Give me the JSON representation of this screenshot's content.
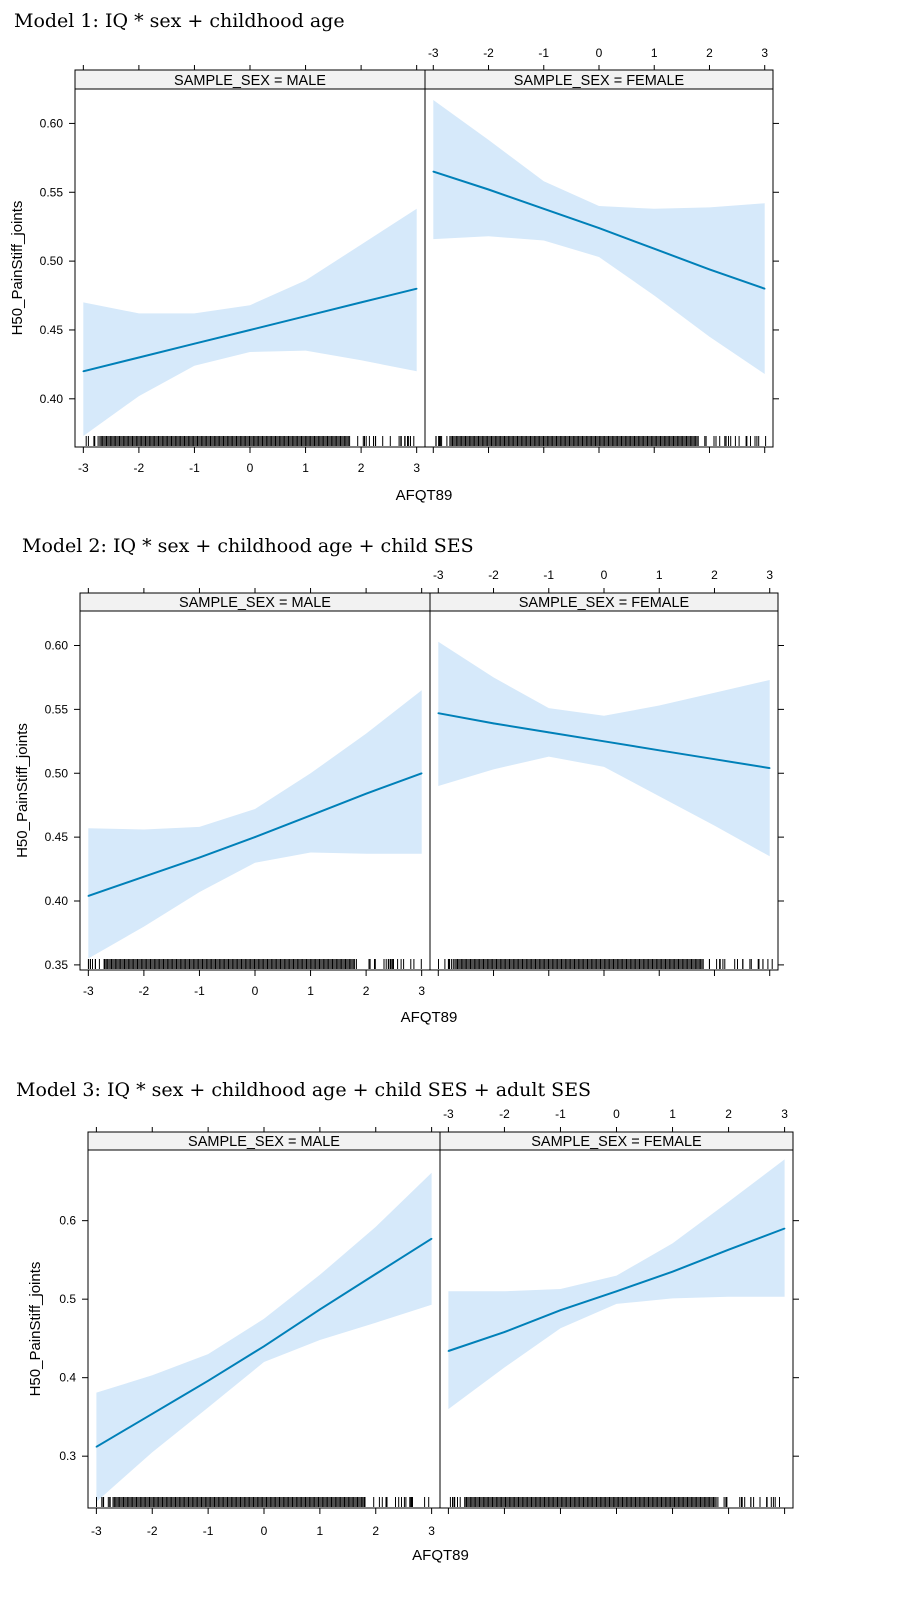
{
  "chart_data": [
    {
      "type": "line",
      "title": "Model 1: IQ * sex + childhood age",
      "xlabel": "AFQT89",
      "ylabel": "H50_PainStiff_joints",
      "xlim": [
        -3.15,
        3.15
      ],
      "ylim": [
        0.365,
        0.625
      ],
      "xticks": [
        -3,
        -2,
        -1,
        0,
        1,
        2,
        3
      ],
      "yticks": [
        0.4,
        0.45,
        0.5,
        0.55,
        0.6
      ],
      "ytick_labels": [
        "0.40",
        "0.45",
        "0.50",
        "0.55",
        "0.60"
      ],
      "grid": false,
      "panels": [
        {
          "strip": "SAMPLE_SEX = MALE",
          "x": [
            -3,
            -2,
            -1,
            0,
            1,
            2,
            3
          ],
          "y": [
            0.42,
            0.43,
            0.44,
            0.45,
            0.46,
            0.47,
            0.48
          ],
          "lower": [
            0.373,
            0.402,
            0.424,
            0.434,
            0.435,
            0.428,
            0.42
          ],
          "upper": [
            0.47,
            0.462,
            0.462,
            0.468,
            0.486,
            0.512,
            0.538
          ]
        },
        {
          "strip": "SAMPLE_SEX = FEMALE",
          "x": [
            -3,
            -2,
            -1,
            0,
            1,
            2,
            3
          ],
          "y": [
            0.565,
            0.552,
            0.538,
            0.524,
            0.509,
            0.494,
            0.48
          ],
          "lower": [
            0.516,
            0.518,
            0.515,
            0.503,
            0.475,
            0.445,
            0.418
          ],
          "upper": [
            0.617,
            0.588,
            0.558,
            0.54,
            0.538,
            0.539,
            0.542
          ]
        }
      ]
    },
    {
      "type": "line",
      "title": "Model 2: IQ * sex + childhood age + child SES",
      "xlabel": "AFQT89",
      "ylabel": "H50_PainStiff_joints",
      "xlim": [
        -3.15,
        3.15
      ],
      "ylim": [
        0.346,
        0.627
      ],
      "xticks": [
        -3,
        -2,
        -1,
        0,
        1,
        2,
        3
      ],
      "yticks": [
        0.35,
        0.4,
        0.45,
        0.5,
        0.55,
        0.6
      ],
      "ytick_labels": [
        "0.35",
        "0.40",
        "0.45",
        "0.50",
        "0.55",
        "0.60"
      ],
      "grid": false,
      "panels": [
        {
          "strip": "SAMPLE_SEX = MALE",
          "x": [
            -3,
            -2,
            -1,
            0,
            1,
            2,
            3
          ],
          "y": [
            0.404,
            0.419,
            0.434,
            0.45,
            0.467,
            0.484,
            0.5
          ],
          "lower": [
            0.355,
            0.38,
            0.407,
            0.43,
            0.438,
            0.437,
            0.437
          ],
          "upper": [
            0.457,
            0.456,
            0.458,
            0.472,
            0.5,
            0.531,
            0.565
          ]
        },
        {
          "strip": "SAMPLE_SEX = FEMALE",
          "x": [
            -3,
            -2,
            -1,
            0,
            1,
            2,
            3
          ],
          "y": [
            0.547,
            0.539,
            0.532,
            0.525,
            0.518,
            0.511,
            0.504
          ],
          "lower": [
            0.49,
            0.503,
            0.513,
            0.505,
            0.482,
            0.459,
            0.435
          ],
          "upper": [
            0.603,
            0.575,
            0.551,
            0.545,
            0.553,
            0.563,
            0.573
          ]
        }
      ]
    },
    {
      "type": "line",
      "title": "Model 3: IQ * sex + childhood age + child SES + adult SES",
      "xlabel": "AFQT89",
      "ylabel": "H50_PainStiff_joints",
      "xlim": [
        -3.15,
        3.15
      ],
      "ylim": [
        0.234,
        0.69
      ],
      "xticks": [
        -3,
        -2,
        -1,
        0,
        1,
        2,
        3
      ],
      "yticks": [
        0.3,
        0.4,
        0.5,
        0.6
      ],
      "ytick_labels": [
        "0.3",
        "0.4",
        "0.5",
        "0.6"
      ],
      "grid": false,
      "panels": [
        {
          "strip": "SAMPLE_SEX = MALE",
          "x": [
            -3,
            -2,
            -1,
            0,
            1,
            2,
            3
          ],
          "y": [
            0.312,
            0.354,
            0.396,
            0.44,
            0.487,
            0.532,
            0.577
          ],
          "lower": [
            0.242,
            0.305,
            0.362,
            0.42,
            0.448,
            0.47,
            0.493
          ],
          "upper": [
            0.381,
            0.403,
            0.43,
            0.475,
            0.531,
            0.592,
            0.661
          ]
        },
        {
          "strip": "SAMPLE_SEX = FEMALE",
          "x": [
            -3,
            -2,
            -1,
            0,
            1,
            2,
            3
          ],
          "y": [
            0.434,
            0.458,
            0.486,
            0.51,
            0.535,
            0.563,
            0.59
          ],
          "lower": [
            0.36,
            0.413,
            0.463,
            0.494,
            0.501,
            0.503,
            0.503
          ],
          "upper": [
            0.51,
            0.51,
            0.513,
            0.53,
            0.571,
            0.624,
            0.678
          ]
        }
      ]
    }
  ],
  "colors": {
    "line": "#0080b8",
    "band": "#d6e9fa",
    "strip": "#f2f2f2",
    "axis": "#000000"
  }
}
